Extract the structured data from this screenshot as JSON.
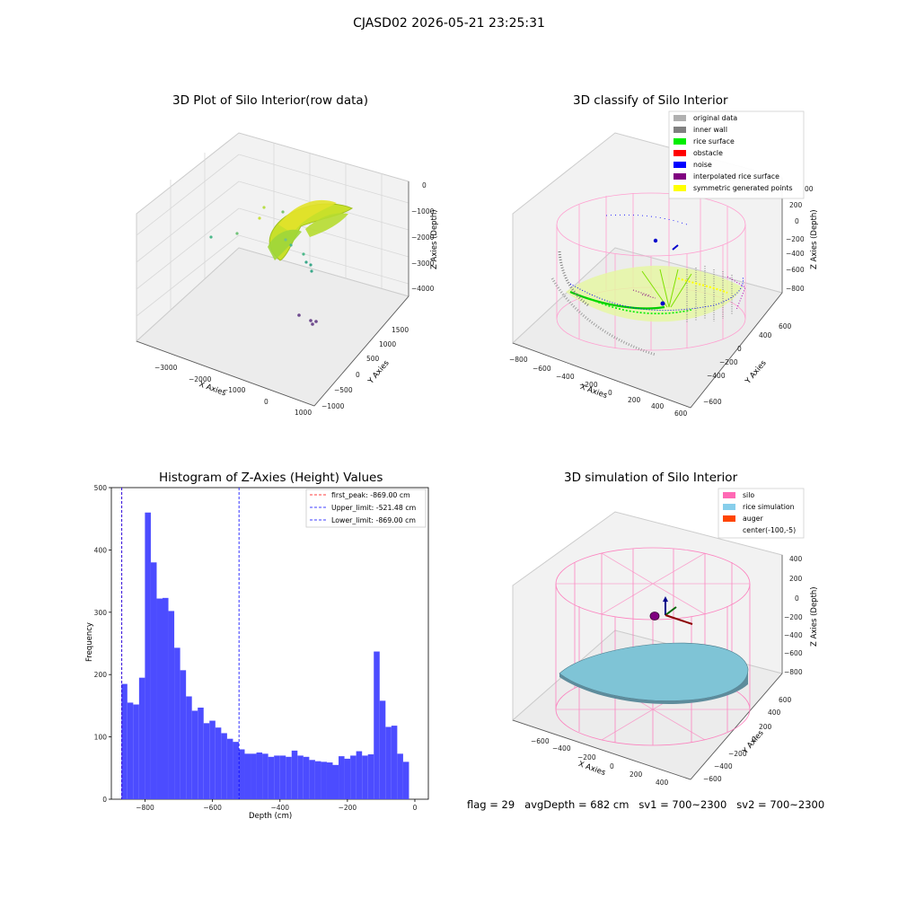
{
  "figure": {
    "suptitle": "CJASD02 2026-05-21 23:25:31",
    "footer": {
      "flag": "flag = 29",
      "avg_depth": "avgDepth = 682 cm",
      "sv1": "sv1 = 700~2300",
      "sv2": "sv2 = 700~2300"
    }
  },
  "panels": {
    "raw": {
      "title": "3D Plot of Silo Interior(row data)",
      "xlabel": "X Axies",
      "ylabel": "Y Axies",
      "zlabel": "Z Axies (Depth)",
      "xticks": [
        "−3000",
        "−2000",
        "−1000",
        "0",
        "1000"
      ],
      "yticks": [
        "−1000",
        "−500",
        "0",
        "500",
        "1000",
        "1500"
      ],
      "zticks": [
        "0",
        "−1000",
        "−2000",
        "−3000",
        "−4000"
      ]
    },
    "classify": {
      "title": "3D classify of Silo Interior",
      "xlabel": "X Axies",
      "ylabel": "Y Axies",
      "zlabel": "Z Axies (Depth)",
      "xticks": [
        "−800",
        "−600",
        "−400",
        "−200",
        "0",
        "200",
        "400",
        "600"
      ],
      "yticks": [
        "−600",
        "−400",
        "−200",
        "0",
        "200",
        "400",
        "600"
      ],
      "zticks": [
        "200",
        "0",
        "−200",
        "−400",
        "−600",
        "−800"
      ],
      "partial_ztick": "00",
      "legend": [
        {
          "label": "original data",
          "color": "#b0b0b0"
        },
        {
          "label": "inner wall",
          "color": "#808080"
        },
        {
          "label": "rice surface",
          "color": "#00ee00"
        },
        {
          "label": "obstacle",
          "color": "#ff0000"
        },
        {
          "label": "noise",
          "color": "#0000ff"
        },
        {
          "label": "interpolated rice surface",
          "color": "#800080"
        },
        {
          "label": "symmetric generated points",
          "color": "#ffff00"
        }
      ]
    },
    "simulation": {
      "title": "3D simulation of Silo Interior",
      "xlabel": "X Axies",
      "ylabel": "Y Axies",
      "zlabel": "Z Axies (Depth)",
      "xticks": [
        "−600",
        "−400",
        "−200",
        "0",
        "200",
        "400"
      ],
      "yticks": [
        "−600",
        "−400",
        "−200",
        "0",
        "200",
        "400",
        "600"
      ],
      "zticks": [
        "400",
        "200",
        "0",
        "−200",
        "−400",
        "−600",
        "−800"
      ],
      "legend": [
        {
          "label": "silo",
          "color": "#ff69b4"
        },
        {
          "label": "rice simulation",
          "color": "#87ceeb"
        },
        {
          "label": "auger",
          "color": "#ff4500"
        },
        {
          "label": "center(-100,-5)",
          "color": "none"
        }
      ]
    }
  },
  "chart_data": [
    {
      "type": "histogram",
      "title": "Histogram of Z-Axies (Height) Values",
      "xlabel": "Depth (cm)",
      "ylabel": "Frequency",
      "xlim": [
        -900,
        40
      ],
      "ylim": [
        0,
        500
      ],
      "xticks": [
        -800,
        -600,
        -400,
        -200,
        0
      ],
      "yticks": [
        0,
        100,
        200,
        300,
        400,
        500
      ],
      "bin_start": -870,
      "bin_width": 17.4,
      "bar_color": "#4c4cff",
      "values": [
        185,
        155,
        152,
        195,
        460,
        380,
        322,
        323,
        302,
        243,
        207,
        165,
        142,
        147,
        122,
        126,
        115,
        106,
        97,
        92,
        80,
        73,
        73,
        75,
        73,
        68,
        70,
        70,
        68,
        78,
        70,
        68,
        63,
        61,
        60,
        59,
        55,
        69,
        65,
        70,
        77,
        70,
        72,
        237,
        158,
        116,
        118,
        73,
        60
      ],
      "vlines": [
        {
          "label": "first_peak: -869.00 cm",
          "x": -869,
          "color": "#ff0000"
        },
        {
          "label": "Upper_limit: -521.48 cm",
          "x": -521.48,
          "color": "#0000ff"
        },
        {
          "label": "Lower_limit: -869.00 cm",
          "x": -869,
          "color": "#0000ff"
        }
      ],
      "legend_position": "top-right"
    }
  ]
}
